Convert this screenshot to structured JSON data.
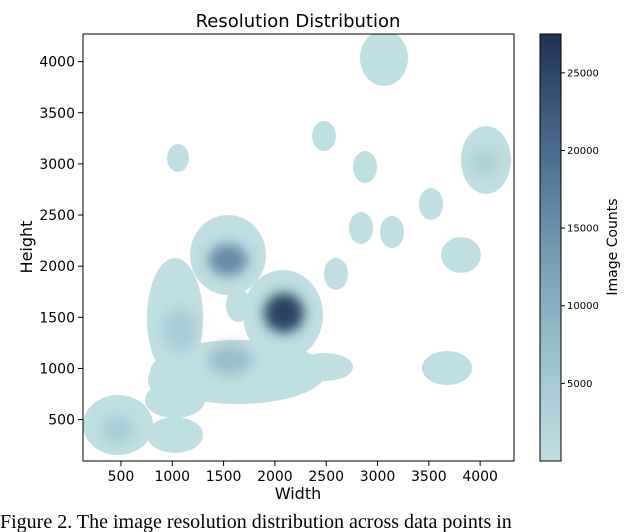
{
  "chart_data": {
    "type": "heatmap",
    "subtype": "kde-density",
    "title": "Resolution Distribution",
    "xlabel": "Width",
    "ylabel": "Height",
    "xlim": [
      130,
      4330
    ],
    "ylim": [
      95,
      4270
    ],
    "xticks": [
      500,
      1000,
      1500,
      2000,
      2500,
      3000,
      3500,
      4000
    ],
    "yticks": [
      500,
      1000,
      1500,
      2000,
      2500,
      3000,
      3500,
      4000
    ],
    "grid": false,
    "colorbar": {
      "label": "Image Counts",
      "range": [
        0,
        27500
      ],
      "ticks": [
        5000,
        10000,
        15000,
        20000,
        25000
      ],
      "color_low": "#bfdfe2",
      "color_high": "#1f3352"
    },
    "clusters": [
      {
        "x": 1520,
        "y": 2040,
        "density": 9500
      },
      {
        "x": 2050,
        "y": 1500,
        "density": 26500
      },
      {
        "x": 1150,
        "y": 1450,
        "density": 3500
      },
      {
        "x": 1600,
        "y": 950,
        "density": 4500
      },
      {
        "x": 1000,
        "y": 900,
        "density": 2500
      },
      {
        "x": 420,
        "y": 350,
        "density": 3000
      },
      {
        "x": 2350,
        "y": 1350,
        "density": 2000
      },
      {
        "x": 1600,
        "y": 1600,
        "density": 1500
      },
      {
        "x": 2550,
        "y": 930,
        "density": 1500
      },
      {
        "x": 2570,
        "y": 1920,
        "density": 1200
      },
      {
        "x": 2450,
        "y": 3250,
        "density": 1000
      },
      {
        "x": 2880,
        "y": 2950,
        "density": 1000
      },
      {
        "x": 2830,
        "y": 2370,
        "density": 1100
      },
      {
        "x": 3150,
        "y": 2330,
        "density": 1100
      },
      {
        "x": 3520,
        "y": 2600,
        "density": 1100
      },
      {
        "x": 3790,
        "y": 2110,
        "density": 1200
      },
      {
        "x": 3650,
        "y": 970,
        "density": 1200
      },
      {
        "x": 4070,
        "y": 3000,
        "density": 2800
      },
      {
        "x": 2980,
        "y": 4000,
        "density": 1800
      },
      {
        "x": 1020,
        "y": 3040,
        "density": 900
      }
    ]
  },
  "caption": "Figure 2. The image resolution distribution across data points in"
}
